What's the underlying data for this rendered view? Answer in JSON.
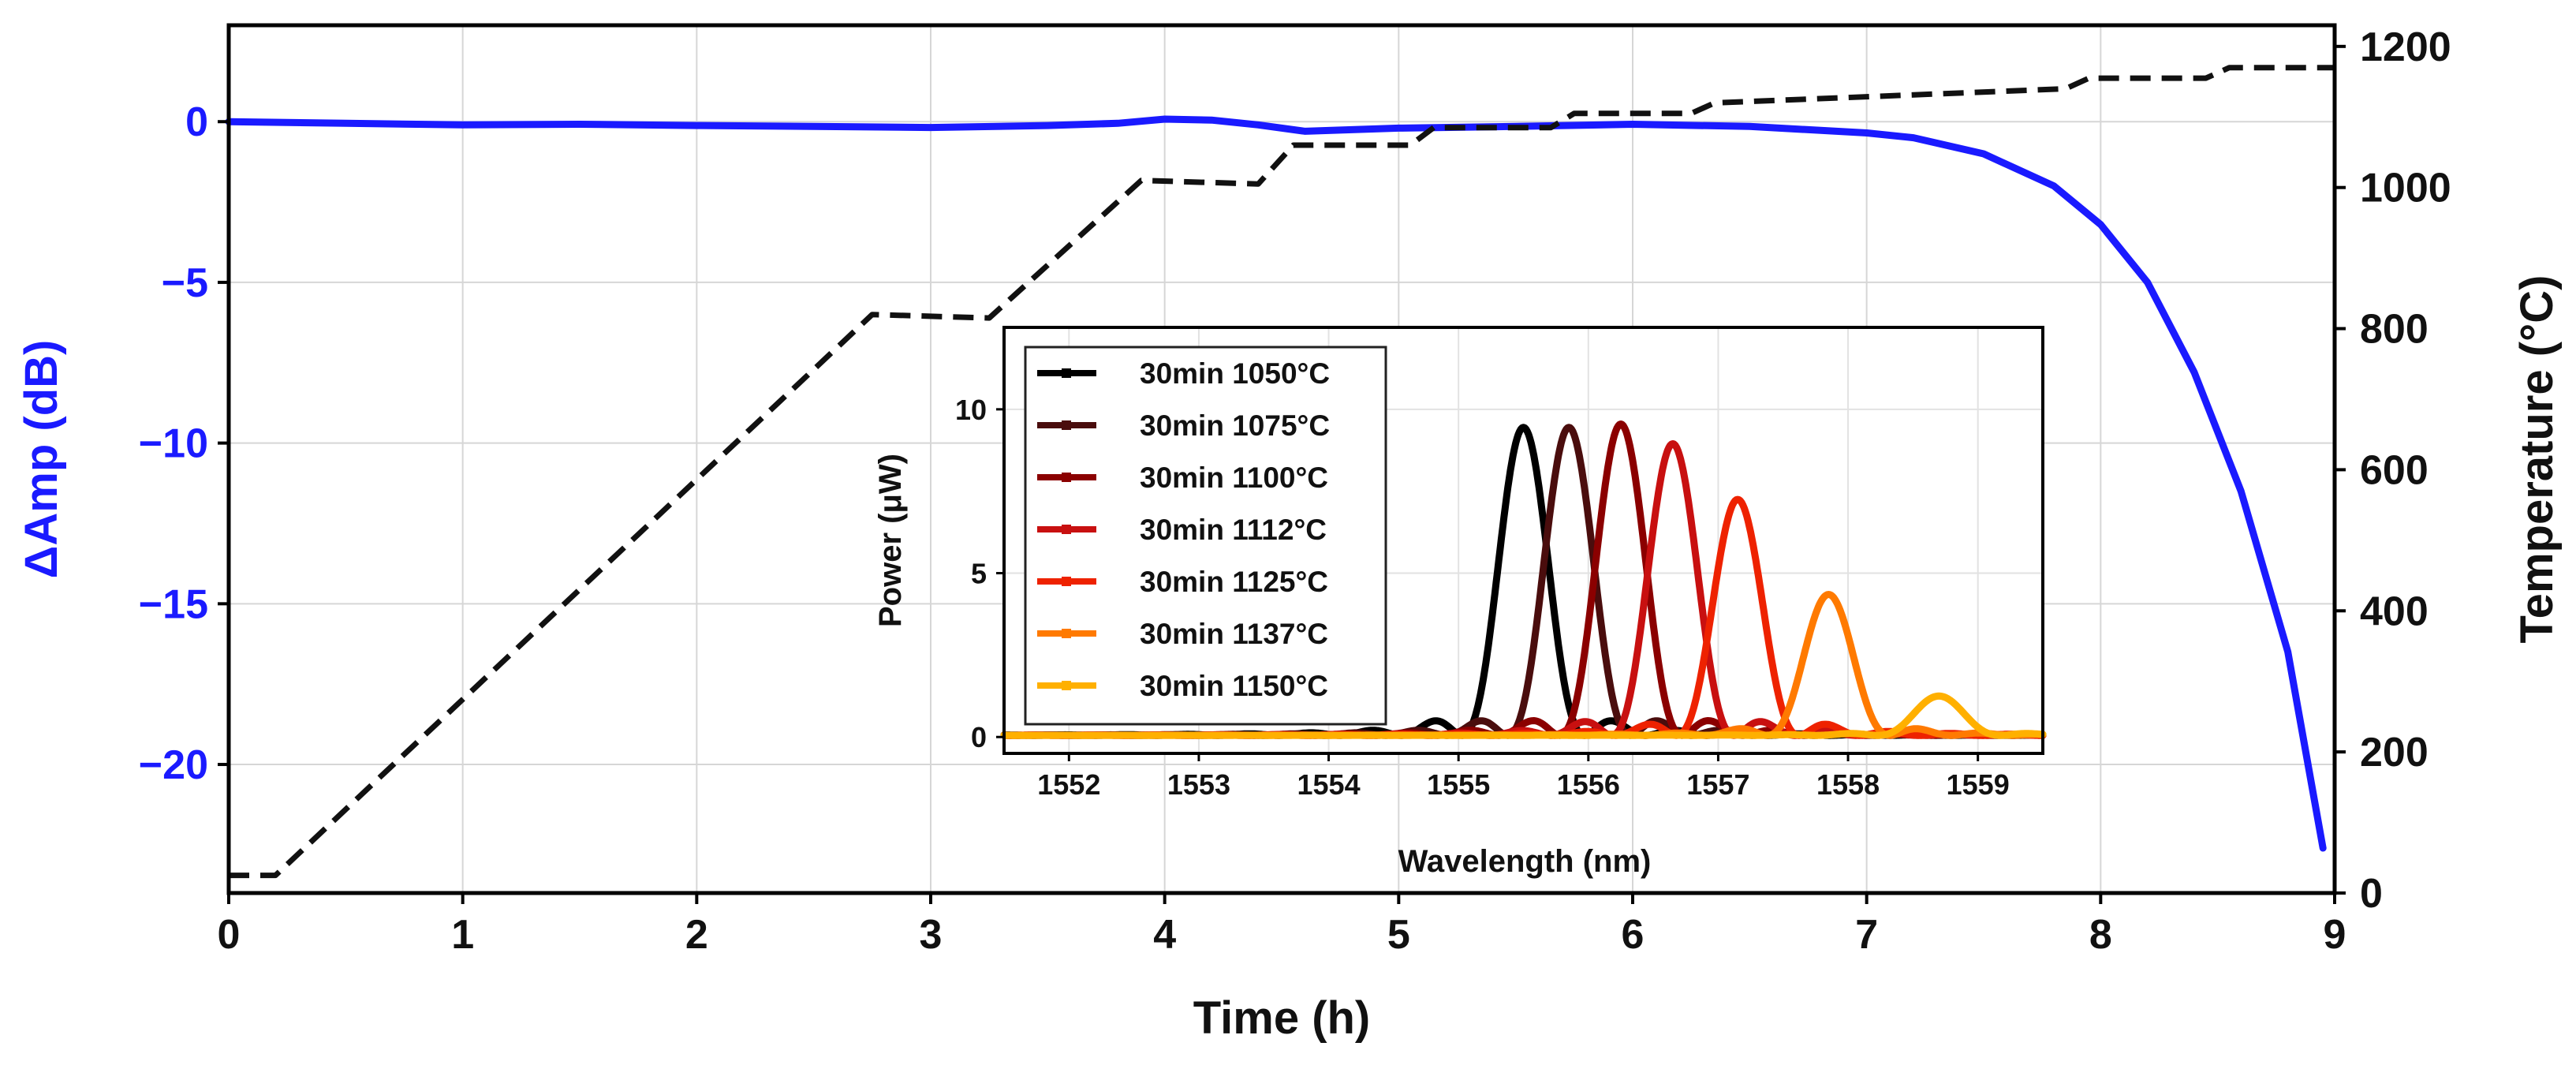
{
  "chart_data": [
    {
      "type": "line",
      "title": "",
      "xlabel": "Time (h)",
      "ylabel_left": "ΔAmp (dB)",
      "ylabel_right": "Temperature (°C)",
      "xlim": [
        0,
        9
      ],
      "ylim_left": [
        -24,
        3
      ],
      "ylim_right": [
        0,
        1230
      ],
      "xticks": [
        "0",
        "1",
        "2",
        "3",
        "4",
        "5",
        "6",
        "7",
        "8",
        "9"
      ],
      "yticks_left": [
        "0",
        "−5",
        "−10",
        "−15",
        "−20"
      ],
      "yticks_right": [
        "0",
        "200",
        "400",
        "600",
        "800",
        "1000",
        "1200"
      ],
      "grid": true,
      "colors": {
        "amp": "#1a1aff",
        "temp": "#111111",
        "ylabel_left": "#1a1aff"
      },
      "series": [
        {
          "name": "ΔAmp",
          "axis": "left",
          "style": "solid",
          "x": [
            0,
            0.5,
            1,
            1.5,
            2,
            2.5,
            3,
            3.5,
            3.8,
            4.0,
            4.2,
            4.4,
            4.6,
            4.8,
            5.0,
            5.5,
            6.0,
            6.5,
            7.0,
            7.2,
            7.5,
            7.8,
            8.0,
            8.2,
            8.4,
            8.6,
            8.8,
            8.95
          ],
          "y": [
            0,
            -0.05,
            -0.1,
            -0.08,
            -0.12,
            -0.15,
            -0.18,
            -0.12,
            -0.05,
            0.08,
            0.05,
            -0.1,
            -0.3,
            -0.25,
            -0.2,
            -0.15,
            -0.08,
            -0.15,
            -0.35,
            -0.5,
            -1.0,
            -2.0,
            -3.2,
            -5.0,
            -7.8,
            -11.5,
            -16.5,
            -22.6
          ]
        },
        {
          "name": "Temperature",
          "axis": "right",
          "style": "dashed",
          "x": [
            0,
            0.2,
            2.75,
            3.25,
            3.9,
            4.4,
            4.55,
            5.05,
            5.15,
            5.65,
            5.75,
            6.25,
            6.35,
            7.85,
            7.95,
            8.45,
            8.55,
            9.0
          ],
          "y": [
            25,
            25,
            820,
            815,
            1010,
            1005,
            1060,
            1060,
            1085,
            1085,
            1105,
            1105,
            1120,
            1140,
            1155,
            1155,
            1170,
            1170
          ]
        }
      ]
    },
    {
      "type": "line",
      "title": "",
      "xlabel": "Wavelength (nm)",
      "ylabel": "Power (μW)",
      "xlim": [
        1551.5,
        1559.5
      ],
      "ylim": [
        -0.5,
        12.5
      ],
      "xticks": [
        "1552",
        "1553",
        "1554",
        "1555",
        "1556",
        "1557",
        "1558",
        "1559"
      ],
      "yticks": [
        "0",
        "5",
        "10"
      ],
      "legend_position": "top-left",
      "series": [
        {
          "name": "30min 1050°C",
          "color": "#000000",
          "peak_wavelength": 1555.5,
          "peak_power": 9.4
        },
        {
          "name": "30min 1075°C",
          "color": "#4a0d0d",
          "peak_wavelength": 1555.85,
          "peak_power": 9.4
        },
        {
          "name": "30min 1100°C",
          "color": "#8b0000",
          "peak_wavelength": 1556.25,
          "peak_power": 9.5
        },
        {
          "name": "30min 1112°C",
          "color": "#c81010",
          "peak_wavelength": 1556.65,
          "peak_power": 8.9
        },
        {
          "name": "30min 1125°C",
          "color": "#ee2200",
          "peak_wavelength": 1557.15,
          "peak_power": 7.2
        },
        {
          "name": "30min 1137°C",
          "color": "#ff7a00",
          "peak_wavelength": 1557.85,
          "peak_power": 4.3
        },
        {
          "name": "30min 1150°C",
          "color": "#ffb000",
          "peak_wavelength": 1558.7,
          "peak_power": 1.2
        }
      ]
    }
  ]
}
